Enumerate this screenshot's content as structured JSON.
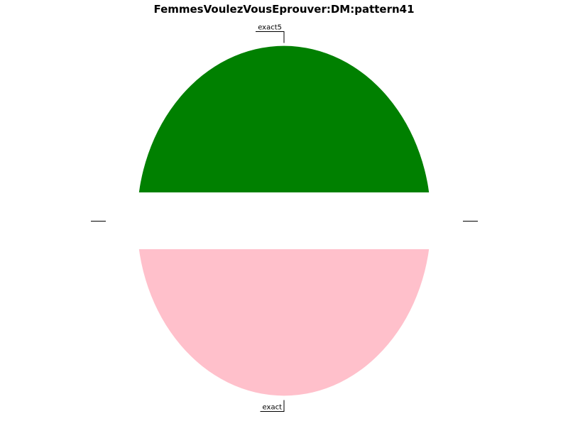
{
  "chart_data": {
    "type": "pie",
    "title": "FemmesVoulezVousEprouver:DM:pattern41",
    "slices": [
      {
        "label": "exact5",
        "value": 50,
        "color": "#008000"
      },
      {
        "label": "exact",
        "value": 50,
        "color": "#ffc0cb"
      }
    ],
    "start_angle": 0,
    "direction": "counterclockwise",
    "legend": "none"
  }
}
